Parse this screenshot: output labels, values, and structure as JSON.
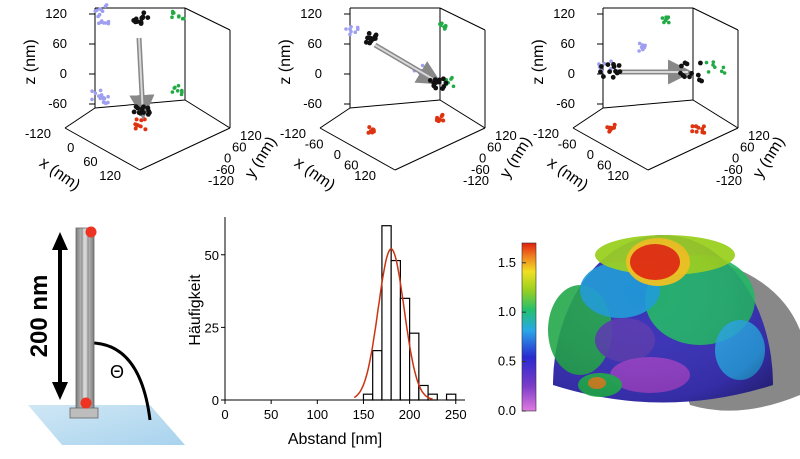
{
  "plots3d": [
    {
      "zlabel": "z (nm)",
      "xlabel": "x (nm)",
      "ylabel": "y (nm)",
      "zticks": [
        "120",
        "60",
        "0",
        "-60"
      ],
      "xticks": [
        "-120",
        "0",
        "60",
        "120"
      ],
      "yticks": [
        "120",
        "60",
        "0",
        "-60",
        "-120"
      ]
    },
    {
      "zlabel": "z (nm)",
      "xlabel": "x (nm)",
      "ylabel": "y (nm)",
      "zticks": [
        "120",
        "60",
        "0",
        "-60"
      ],
      "xticks": [
        "-120",
        "-60",
        "0",
        "60",
        "120"
      ],
      "yticks": [
        "120",
        "60",
        "0",
        "-60",
        "-120"
      ]
    },
    {
      "zlabel": "z (nm)",
      "xlabel": "x (nm)",
      "ylabel": "y (nm)",
      "zticks": [
        "120",
        "60",
        "0",
        "-60"
      ],
      "xticks": [
        "-120",
        "-60",
        "0",
        "60",
        "120"
      ],
      "yticks": [
        "120",
        "60",
        "0",
        "-60",
        "-120"
      ]
    }
  ],
  "rod": {
    "length_label": "200 nm",
    "angle_label": "Θ"
  },
  "chart_data": {
    "type": "bar",
    "xlabel": "Abstand [nm]",
    "ylabel": "Häufigkeit",
    "xlim": [
      0,
      260
    ],
    "ylim": [
      0,
      63
    ],
    "xticks": [
      "0",
      "50",
      "100",
      "150",
      "200",
      "250"
    ],
    "yticks": [
      "0",
      "25",
      "50"
    ],
    "bins": [
      {
        "x": 155,
        "count": 2
      },
      {
        "x": 165,
        "count": 17
      },
      {
        "x": 175,
        "count": 60
      },
      {
        "x": 185,
        "count": 48
      },
      {
        "x": 195,
        "count": 35
      },
      {
        "x": 205,
        "count": 23
      },
      {
        "x": 215,
        "count": 5
      },
      {
        "x": 225,
        "count": 2
      },
      {
        "x": 235,
        "count": 0
      },
      {
        "x": 245,
        "count": 2
      }
    ],
    "bin_width": 10,
    "fit": {
      "type": "gaussian",
      "center": 180,
      "sigma": 14,
      "amplitude": 52,
      "color": "#cc3311"
    }
  },
  "colorbar": {
    "ticks": [
      "0.0",
      "0.5",
      "1.0",
      "1.5"
    ],
    "min": 0,
    "max": 1.7
  },
  "colors": {
    "purple_points": "#9f9ff0",
    "green_points": "#22aa44",
    "black_points": "#111111",
    "red_points": "#dd3311",
    "rod": "#999999"
  }
}
